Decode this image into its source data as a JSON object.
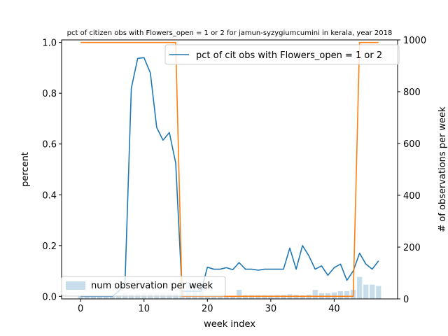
{
  "chart_data": {
    "type": "line",
    "title": "pct of citizen obs with Flowers_open = 1 or 2 for jamun-syzygiumcumini in kerala, year 2018",
    "xlabel": "week index",
    "ylabel": "percent",
    "ylabel_right": "# of observations per week",
    "xlim": [
      -3,
      50
    ],
    "ylim": [
      -0.01,
      1.01
    ],
    "ylim_right": [
      0,
      1000
    ],
    "x_ticks": [
      "0",
      "10",
      "20",
      "30",
      "40"
    ],
    "y_ticks": [
      "0.0",
      "0.2",
      "0.4",
      "0.6",
      "0.8",
      "1.0"
    ],
    "y_ticks_right": [
      "0",
      "200",
      "400",
      "600",
      "800",
      "1000"
    ],
    "grid": false,
    "legend_line": {
      "placement": "top-right",
      "label": "pct of cit obs with Flowers_open = 1 or 2"
    },
    "legend_bar": {
      "placement": "bottom-left",
      "label": "num observation per week"
    },
    "series": [
      {
        "name": "pct of cit obs with Flowers_open = 1 or 2",
        "axis": "left",
        "color": "#1f77b4",
        "x": [
          0,
          1,
          2,
          3,
          4,
          5,
          6,
          7,
          8,
          9,
          10,
          11,
          12,
          13,
          14,
          15,
          16,
          17,
          18,
          19,
          20,
          21,
          22,
          23,
          24,
          25,
          26,
          27,
          28,
          29,
          30,
          31,
          32,
          33,
          34,
          35,
          36,
          37,
          38,
          39,
          40,
          41,
          42,
          43,
          44,
          45,
          46,
          47
        ],
        "values": [
          0.0,
          0.0,
          0.0,
          0.0,
          0.0,
          0.0,
          0.02,
          0.05,
          0.82,
          0.937,
          0.94,
          0.88,
          0.665,
          0.615,
          0.645,
          0.525,
          0.02,
          0.02,
          0.02,
          0.02,
          0.115,
          0.107,
          0.107,
          0.113,
          0.105,
          0.133,
          0.107,
          0.107,
          0.103,
          0.107,
          0.107,
          0.107,
          0.107,
          0.19,
          0.107,
          0.2,
          0.16,
          0.107,
          0.12,
          0.083,
          0.113,
          0.127,
          0.063,
          0.1,
          0.17,
          0.127,
          0.107,
          0.14
        ]
      },
      {
        "name": "",
        "axis": "right",
        "color": "#ff7f0e",
        "x": [
          0,
          15,
          16,
          43,
          44,
          47
        ],
        "values": [
          990,
          990,
          10,
          10,
          990,
          990
        ]
      },
      {
        "name": "num observation per week",
        "type": "bar",
        "axis": "right",
        "color": "#1f77b4",
        "opacity": 0.25,
        "x": [
          0,
          1,
          2,
          3,
          4,
          5,
          6,
          7,
          8,
          9,
          10,
          11,
          12,
          13,
          14,
          15,
          16,
          17,
          18,
          19,
          20,
          21,
          22,
          23,
          24,
          25,
          26,
          27,
          28,
          29,
          30,
          31,
          32,
          33,
          34,
          35,
          36,
          37,
          38,
          39,
          40,
          41,
          42,
          43,
          44,
          45,
          46,
          47
        ],
        "values": [
          12,
          12,
          12,
          12,
          12,
          12,
          15,
          20,
          18,
          20,
          20,
          20,
          20,
          20,
          20,
          20,
          65,
          65,
          65,
          68,
          12,
          12,
          12,
          12,
          12,
          35,
          14,
          14,
          14,
          14,
          14,
          15,
          15,
          18,
          16,
          14,
          16,
          35,
          22,
          22,
          25,
          30,
          30,
          35,
          85,
          55,
          55,
          50
        ]
      }
    ]
  }
}
